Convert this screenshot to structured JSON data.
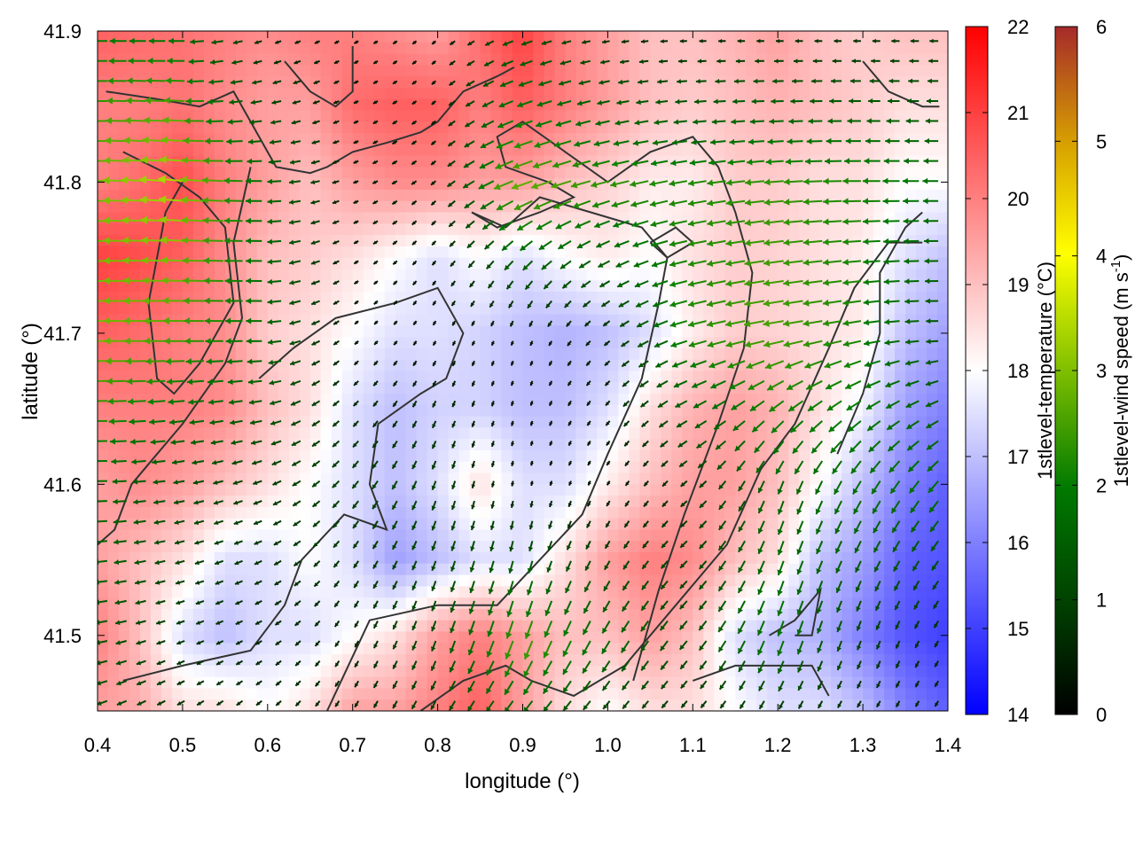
{
  "chart_data": {
    "type": "heatmap",
    "title": "",
    "xlabel": "longitude (°)",
    "ylabel": "latitude (°)",
    "xlim": [
      0.4,
      1.4
    ],
    "ylim": [
      41.45,
      41.9
    ],
    "x_ticks": [
      "0.4",
      "0.5",
      "0.6",
      "0.7",
      "0.8",
      "0.9",
      "1.0",
      "1.1",
      "1.2",
      "1.3",
      "1.4"
    ],
    "y_ticks": [
      "41.5",
      "41.6",
      "41.7",
      "41.8",
      "41.9"
    ],
    "x_tick_values": [
      0.4,
      0.5,
      0.6,
      0.7,
      0.8,
      0.9,
      1.0,
      1.1,
      1.2,
      1.3,
      1.4
    ],
    "y_tick_values": [
      41.5,
      41.6,
      41.7,
      41.8,
      41.9
    ],
    "colorbars": [
      {
        "label": "1stlevel-temperature (°C)",
        "range": [
          14,
          22
        ],
        "ticks": [
          "14",
          "15",
          "16",
          "17",
          "18",
          "19",
          "20",
          "21",
          "22"
        ],
        "tick_values": [
          14,
          15,
          16,
          17,
          18,
          19,
          20,
          21,
          22
        ],
        "palette": [
          "#0000ff",
          "#ffffff",
          "#ff0000"
        ]
      },
      {
        "label_main": "1stlevel-wind speed (m s",
        "label_sup": "-1",
        "label_end": ")",
        "range": [
          0,
          6
        ],
        "ticks": [
          "0",
          "1",
          "2",
          "3",
          "4",
          "5",
          "6"
        ],
        "tick_values": [
          0,
          1,
          2,
          3,
          4,
          5,
          6
        ],
        "palette": [
          "#000000",
          "#004400",
          "#007a00",
          "#7fbf00",
          "#ffff00",
          "#d7a000",
          "#a52a2a"
        ]
      }
    ],
    "temperature_field": {
      "grid_x": [
        0.4,
        0.45,
        0.5,
        0.55,
        0.6,
        0.65,
        0.7,
        0.75,
        0.8,
        0.85,
        0.9,
        0.95,
        1.0,
        1.05,
        1.1,
        1.15,
        1.2,
        1.25,
        1.3,
        1.35,
        1.4
      ],
      "grid_y": [
        41.9,
        41.85,
        41.8,
        41.75,
        41.7,
        41.65,
        41.6,
        41.55,
        41.5,
        41.45
      ],
      "values": [
        [
          20.5,
          20.3,
          20.2,
          20.0,
          19.8,
          20.0,
          20.0,
          19.8,
          19.5,
          20.3,
          21.0,
          20.0,
          19.5,
          19.0,
          19.0,
          19.2,
          19.5,
          19.0,
          18.8,
          19.0,
          19.0
        ],
        [
          20.0,
          20.0,
          20.2,
          19.8,
          19.5,
          19.5,
          20.3,
          20.5,
          20.5,
          20.0,
          20.5,
          20.0,
          19.5,
          19.0,
          18.8,
          19.0,
          19.2,
          19.0,
          18.8,
          18.5,
          18.5
        ],
        [
          20.0,
          20.3,
          20.8,
          20.0,
          19.5,
          19.0,
          19.5,
          19.8,
          19.8,
          19.5,
          19.5,
          19.0,
          18.7,
          18.3,
          18.3,
          18.8,
          18.8,
          18.5,
          18.5,
          18.0,
          18.0
        ],
        [
          21.0,
          20.8,
          20.5,
          19.8,
          19.0,
          18.8,
          18.5,
          18.0,
          17.5,
          18.0,
          17.5,
          18.0,
          18.3,
          18.0,
          18.5,
          18.8,
          18.7,
          18.5,
          18.3,
          17.5,
          17.0
        ],
        [
          20.5,
          20.3,
          20.0,
          19.8,
          18.8,
          18.5,
          18.0,
          17.5,
          17.5,
          17.3,
          17.0,
          16.8,
          17.0,
          17.5,
          18.3,
          18.8,
          18.7,
          18.5,
          18.3,
          17.0,
          16.5
        ],
        [
          20.0,
          20.0,
          20.0,
          19.8,
          19.0,
          18.5,
          17.5,
          17.0,
          17.3,
          17.3,
          17.0,
          17.0,
          17.5,
          18.5,
          19.2,
          19.5,
          19.2,
          18.5,
          17.8,
          16.5,
          16.0
        ],
        [
          19.5,
          19.8,
          19.5,
          19.0,
          18.5,
          18.0,
          17.5,
          17.0,
          17.5,
          18.5,
          17.5,
          17.5,
          18.3,
          19.0,
          19.5,
          19.5,
          19.0,
          18.0,
          17.0,
          16.0,
          15.5
        ],
        [
          19.5,
          19.0,
          18.5,
          17.5,
          17.5,
          18.0,
          17.5,
          16.5,
          17.0,
          17.5,
          17.5,
          18.5,
          19.5,
          20.0,
          19.8,
          19.0,
          18.5,
          17.0,
          16.5,
          15.5,
          15.3
        ],
        [
          20.0,
          19.0,
          17.5,
          17.0,
          17.5,
          17.5,
          18.0,
          18.5,
          19.5,
          20.0,
          19.5,
          19.0,
          19.0,
          19.5,
          19.0,
          17.5,
          17.0,
          16.8,
          16.0,
          15.3,
          15.0
        ],
        [
          19.5,
          19.3,
          18.5,
          18.5,
          18.0,
          18.5,
          19.5,
          19.5,
          20.0,
          20.5,
          19.5,
          18.5,
          18.0,
          18.5,
          18.5,
          18.0,
          17.5,
          17.5,
          17.0,
          16.0,
          15.5
        ]
      ]
    },
    "wind_field": {
      "grid_x": [
        0.4,
        0.5,
        0.6,
        0.7,
        0.8,
        0.9,
        1.0,
        1.1,
        1.2,
        1.3,
        1.4
      ],
      "grid_y": [
        41.9,
        41.8,
        41.7,
        41.6,
        41.5,
        41.45
      ],
      "speed": [
        [
          2.0,
          1.8,
          0.5,
          0.3,
          0.3,
          1.2,
          0.6,
          0.5,
          0.6,
          0.6,
          0.8
        ],
        [
          2.8,
          3.4,
          1.8,
          0.4,
          0.5,
          2.8,
          2.4,
          2.2,
          2.4,
          2.2,
          1.8
        ],
        [
          3.0,
          2.6,
          1.8,
          0.3,
          0.3,
          0.3,
          0.6,
          2.2,
          2.6,
          2.2,
          1.2
        ],
        [
          1.8,
          1.2,
          0.9,
          1.0,
          1.0,
          0.3,
          0.3,
          0.8,
          1.6,
          1.8,
          1.8
        ],
        [
          1.4,
          0.8,
          0.6,
          0.6,
          1.2,
          2.6,
          1.8,
          1.2,
          2.0,
          1.0,
          0.6
        ],
        [
          1.2,
          0.8,
          0.6,
          0.6,
          1.0,
          1.6,
          1.0,
          0.8,
          0.8,
          0.6,
          0.5
        ]
      ],
      "direction_deg": [
        [
          180,
          180,
          200,
          210,
          220,
          200,
          190,
          180,
          180,
          180,
          180
        ],
        [
          180,
          175,
          180,
          200,
          220,
          200,
          195,
          190,
          185,
          180,
          180
        ],
        [
          180,
          180,
          180,
          220,
          240,
          250,
          220,
          195,
          190,
          190,
          180
        ],
        [
          180,
          190,
          200,
          230,
          250,
          260,
          240,
          220,
          250,
          240,
          230
        ],
        [
          190,
          200,
          210,
          240,
          250,
          250,
          240,
          230,
          250,
          250,
          240
        ],
        [
          200,
          210,
          220,
          240,
          240,
          230,
          230,
          230,
          240,
          240,
          240
        ]
      ]
    },
    "contours": [
      [
        [
          0.41,
          41.86
        ],
        [
          0.47,
          41.855
        ],
        [
          0.52,
          41.85
        ],
        [
          0.56,
          41.86
        ],
        [
          0.58,
          41.84
        ],
        [
          0.6,
          41.82
        ],
        [
          0.61,
          41.81
        ],
        [
          0.65,
          41.806
        ],
        [
          0.67,
          41.81
        ],
        [
          0.7,
          41.82
        ],
        [
          0.74,
          41.826
        ],
        [
          0.78,
          41.833
        ],
        [
          0.8,
          41.84
        ],
        [
          0.83,
          41.86
        ],
        [
          0.87,
          41.87
        ],
        [
          0.89,
          41.876
        ]
      ],
      [
        [
          0.43,
          41.82
        ],
        [
          0.48,
          41.806
        ],
        [
          0.52,
          41.79
        ],
        [
          0.55,
          41.77
        ],
        [
          0.56,
          41.72
        ],
        [
          0.52,
          41.68
        ],
        [
          0.49,
          41.66
        ],
        [
          0.47,
          41.67
        ],
        [
          0.46,
          41.72
        ],
        [
          0.48,
          41.78
        ],
        [
          0.5,
          41.8
        ]
      ],
      [
        [
          0.58,
          41.81
        ],
        [
          0.56,
          41.76
        ],
        [
          0.57,
          41.71
        ],
        [
          0.55,
          41.68
        ],
        [
          0.5,
          41.64
        ],
        [
          0.47,
          41.62
        ],
        [
          0.44,
          41.6
        ],
        [
          0.42,
          41.57
        ],
        [
          0.4,
          41.56
        ]
      ],
      [
        [
          0.62,
          41.88
        ],
        [
          0.65,
          41.86
        ],
        [
          0.68,
          41.85
        ],
        [
          0.7,
          41.86
        ],
        [
          0.7,
          41.89
        ]
      ],
      [
        [
          0.84,
          41.78
        ],
        [
          0.87,
          41.77
        ],
        [
          0.92,
          41.78
        ],
        [
          0.96,
          41.79
        ],
        [
          0.93,
          41.8
        ],
        [
          0.88,
          41.81
        ],
        [
          0.87,
          41.83
        ],
        [
          0.9,
          41.84
        ],
        [
          0.95,
          41.82
        ],
        [
          1.0,
          41.8
        ],
        [
          1.05,
          41.82
        ],
        [
          1.1,
          41.83
        ],
        [
          1.13,
          41.81
        ],
        [
          1.15,
          41.78
        ],
        [
          1.17,
          41.74
        ],
        [
          1.16,
          41.69
        ],
        [
          1.13,
          41.64
        ],
        [
          1.09,
          41.58
        ],
        [
          1.06,
          41.53
        ],
        [
          1.03,
          41.47
        ]
      ],
      [
        [
          0.43,
          41.47
        ],
        [
          0.5,
          41.48
        ],
        [
          0.58,
          41.49
        ],
        [
          0.62,
          41.52
        ],
        [
          0.64,
          41.55
        ],
        [
          0.69,
          41.58
        ],
        [
          0.74,
          41.57
        ],
        [
          0.72,
          41.6
        ],
        [
          0.73,
          41.64
        ],
        [
          0.78,
          41.66
        ],
        [
          0.81,
          41.67
        ],
        [
          0.83,
          41.7
        ],
        [
          0.8,
          41.73
        ],
        [
          0.75,
          41.72
        ],
        [
          0.68,
          41.71
        ],
        [
          0.63,
          41.69
        ],
        [
          0.59,
          41.67
        ]
      ],
      [
        [
          0.67,
          41.45
        ],
        [
          0.72,
          41.51
        ],
        [
          0.8,
          41.52
        ],
        [
          0.87,
          41.52
        ],
        [
          0.92,
          41.55
        ],
        [
          0.97,
          41.58
        ],
        [
          1.0,
          41.62
        ],
        [
          1.04,
          41.67
        ],
        [
          1.06,
          41.72
        ],
        [
          1.07,
          41.75
        ],
        [
          1.04,
          41.77
        ],
        [
          0.98,
          41.78
        ],
        [
          0.92,
          41.79
        ],
        [
          0.88,
          41.77
        ],
        [
          0.84,
          41.78
        ]
      ],
      [
        [
          0.78,
          41.45
        ],
        [
          0.83,
          41.47
        ],
        [
          0.88,
          41.48
        ],
        [
          0.91,
          41.47
        ],
        [
          0.96,
          41.46
        ],
        [
          1.02,
          41.48
        ],
        [
          1.08,
          41.52
        ],
        [
          1.14,
          41.56
        ],
        [
          1.18,
          41.61
        ],
        [
          1.22,
          41.64
        ],
        [
          1.26,
          41.69
        ],
        [
          1.29,
          41.73
        ],
        [
          1.33,
          41.76
        ],
        [
          1.37,
          41.76
        ]
      ],
      [
        [
          1.1,
          41.47
        ],
        [
          1.15,
          41.48
        ],
        [
          1.2,
          41.48
        ],
        [
          1.24,
          41.48
        ],
        [
          1.26,
          41.46
        ]
      ],
      [
        [
          1.27,
          41.62
        ],
        [
          1.3,
          41.66
        ],
        [
          1.32,
          41.7
        ],
        [
          1.32,
          41.74
        ],
        [
          1.35,
          41.77
        ],
        [
          1.37,
          41.78
        ]
      ],
      [
        [
          1.3,
          41.88
        ],
        [
          1.33,
          41.86
        ],
        [
          1.37,
          41.85
        ],
        [
          1.39,
          41.85
        ]
      ],
      [
        [
          1.19,
          41.5
        ],
        [
          1.22,
          41.51
        ],
        [
          1.25,
          41.53
        ],
        [
          1.24,
          41.5
        ],
        [
          1.22,
          41.5
        ]
      ],
      [
        [
          1.05,
          41.76
        ],
        [
          1.08,
          41.77
        ],
        [
          1.1,
          41.76
        ],
        [
          1.07,
          41.75
        ],
        [
          1.05,
          41.76
        ]
      ]
    ]
  }
}
